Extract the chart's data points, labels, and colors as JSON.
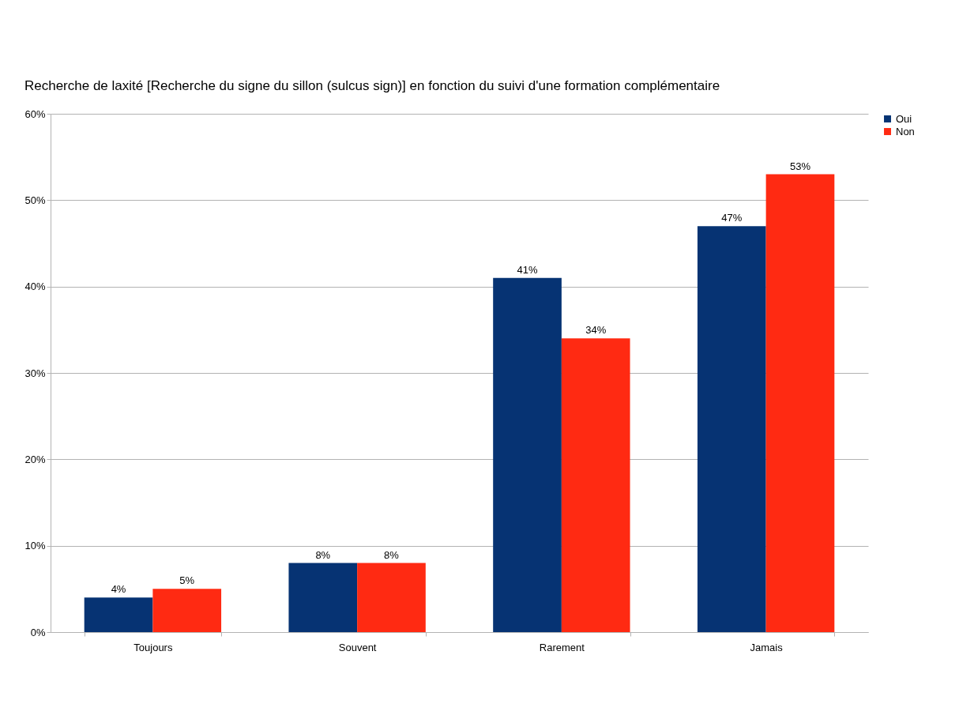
{
  "chart_data": {
    "type": "bar",
    "title": "Recherche de laxité  [Recherche du signe du sillon (sulcus sign)] en fonction du suivi d'une formation complémentaire",
    "categories": [
      "Toujours",
      "Souvent",
      "Rarement",
      "Jamais"
    ],
    "series": [
      {
        "name": "Oui",
        "color": "#063373",
        "values": [
          4,
          8,
          41,
          47
        ],
        "value_labels": [
          "4%",
          "8%",
          "41%",
          "47%"
        ]
      },
      {
        "name": "Non",
        "color": "#ff2a12",
        "values": [
          5,
          8,
          34,
          53
        ],
        "value_labels": [
          "5%",
          "8%",
          "34%",
          "53%"
        ]
      }
    ],
    "ylim": [
      0,
      60
    ],
    "yticks": [
      {
        "value": 0,
        "label": "0%"
      },
      {
        "value": 10,
        "label": "10%"
      },
      {
        "value": 20,
        "label": "20%"
      },
      {
        "value": 30,
        "label": "30%"
      },
      {
        "value": 40,
        "label": "40%"
      },
      {
        "value": 50,
        "label": "50%"
      },
      {
        "value": 60,
        "label": "60%"
      }
    ],
    "grid": "y",
    "legend": "right"
  }
}
